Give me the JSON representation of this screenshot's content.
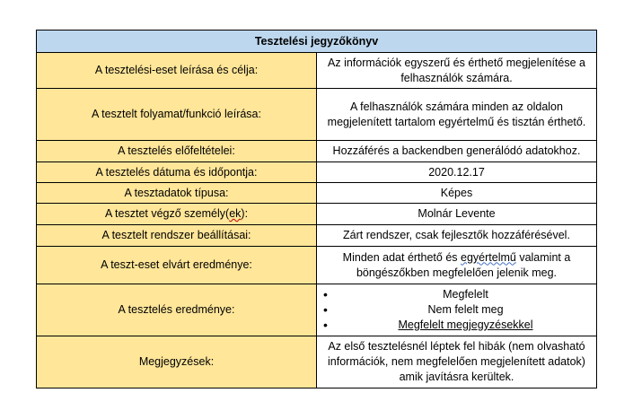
{
  "title": "Tesztelési jegyzőkönyv",
  "rows": [
    {
      "label": "A tesztelési-eset leírása és célja:",
      "value": "Az információk egyszerű és érthető megjelenítése a felhasználók számára."
    },
    {
      "label": "A tesztelt folyamat/funkció leírása:",
      "value": "A felhasználók számára minden az oldalon megjelenített tartalom egyértelmű és tisztán érthető."
    },
    {
      "label": "A tesztelés előfeltételei:",
      "value": "Hozzáférés a backendben generálódó adatokhoz."
    },
    {
      "label": "A tesztelés dátuma és időpontja:",
      "value": "2020.12.17"
    },
    {
      "label": "A tesztadatok típusa:",
      "value": "Képes"
    },
    {
      "label_pre": "A tesztet végző személy(",
      "label_mid": "ek",
      "label_post": "):",
      "value": "Molnár Levente"
    },
    {
      "label": "A tesztelt rendszer beállításai:",
      "value": "Zárt rendszer, csak fejlesztők hozzáférésével."
    },
    {
      "label": "A teszt-eset elvárt eredménye:",
      "value_pre": "Minden adat érthető és ",
      "value_mid": "egyértelmű",
      "value_post": " valamint a böngészőkben megfelelően jelenik meg."
    },
    {
      "label": "A tesztelés eredménye:",
      "options": [
        "Megfelelt",
        "Nem felelt meg",
        "Megfelelt megjegyzésekkel"
      ],
      "selected_index": 2
    },
    {
      "label": "Megjegyzések:",
      "value": "Az első tesztelésnél léptek fel hibák (nem olvasható információk, nem megfelelően megjelenített adatok) amik javításra kerültek."
    }
  ]
}
